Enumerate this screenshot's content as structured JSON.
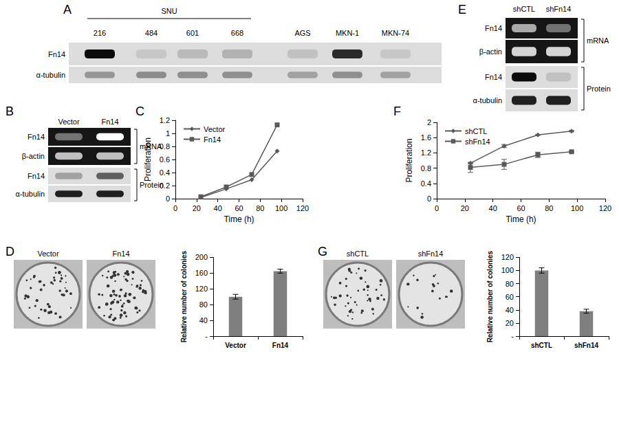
{
  "chart_data": [
    {
      "panel": "C",
      "type": "line",
      "xlabel": "Time (h)",
      "ylabel": "Proliferation",
      "x": [
        24,
        48,
        72,
        96
      ],
      "series": [
        {
          "name": "Vector",
          "color": "#595959",
          "marker": "diamond",
          "line_style": "solid",
          "values": [
            0.02,
            0.15,
            0.29,
            0.73
          ]
        },
        {
          "name": "Fn14",
          "color": "#595959",
          "marker": "square",
          "line_style": "solid",
          "values": [
            0.03,
            0.18,
            0.37,
            1.13
          ]
        }
      ],
      "xlim": [
        0,
        120
      ],
      "xticks": [
        0,
        20,
        40,
        60,
        80,
        100,
        120
      ],
      "ylim": [
        0,
        1.2
      ],
      "yticks": [
        0,
        0.2,
        0.4,
        0.6,
        0.8,
        1,
        1.2
      ],
      "grid": false,
      "legend": "top-left"
    },
    {
      "panel": "F",
      "type": "line",
      "xlabel": "Time (h)",
      "ylabel": "Proliferation",
      "x": [
        24,
        48,
        72,
        96
      ],
      "series": [
        {
          "name": "shCTL",
          "color": "#595959",
          "marker": "diamond",
          "line_style": "solid",
          "values": [
            0.93,
            1.38,
            1.67,
            1.77
          ],
          "errors": [
            0.02,
            0.04,
            0.01,
            0.02
          ]
        },
        {
          "name": "shFn14",
          "color": "#595959",
          "marker": "square",
          "line_style": "solid",
          "values": [
            0.82,
            0.9,
            1.15,
            1.23
          ],
          "errors": [
            0.13,
            0.13,
            0.07,
            0.02
          ]
        }
      ],
      "xlim": [
        0,
        120
      ],
      "xticks": [
        0,
        20,
        40,
        60,
        80,
        100,
        120
      ],
      "ylim": [
        0,
        2
      ],
      "yticks": [
        0,
        0.4,
        0.8,
        1.2,
        1.6,
        2
      ],
      "grid": false,
      "legend": "top-left"
    },
    {
      "panel": "D",
      "type": "bar",
      "ylabel": "Relative number of colonies",
      "categories": [
        "Vector",
        "Fn14"
      ],
      "values": [
        100,
        165
      ],
      "errors": [
        6,
        5
      ],
      "color": "#7f7f7f",
      "ylim": [
        0,
        200
      ],
      "yticks": [
        {
          "value": 0,
          "label": "-"
        },
        40,
        80,
        120,
        160,
        200
      ],
      "grid": false
    },
    {
      "panel": "G",
      "type": "bar",
      "ylabel": "Relative number of colonies",
      "categories": [
        "shCTL",
        "shFn14"
      ],
      "values": [
        100,
        38
      ],
      "errors": [
        4,
        3
      ],
      "color": "#7f7f7f",
      "ylim": [
        0,
        120
      ],
      "yticks": [
        {
          "value": 0,
          "label": "-"
        },
        20,
        40,
        60,
        80,
        100,
        120
      ],
      "grid": false
    }
  ],
  "figure": {
    "blots": [
      {
        "panel": "A",
        "lanes": [
          "216",
          "484",
          "601",
          "668",
          "AGS",
          "MKN-1",
          "MKN-74"
        ],
        "group": {
          "label": "SNU",
          "lanes": [
            "216",
            "484",
            "601",
            "668"
          ]
        },
        "sections": [
          {
            "rows": [
              {
                "label": "Fn14",
                "intensity": [
                  1,
                  0.12,
                  0.18,
                  0.22,
                  0.15,
                  0.85,
                  0.12
                ]
              },
              {
                "label": "α-tubulin",
                "intensity": [
                  0.35,
                  0.4,
                  0.38,
                  0.38,
                  0.3,
                  0.38,
                  0.3
                ]
              }
            ]
          }
        ]
      },
      {
        "panel": "B",
        "lanes": [
          "Vector",
          "Fn14"
        ],
        "sections": [
          {
            "label": "mRNA",
            "rows": [
              {
                "label": "Fn14",
                "intensity": [
                  0.35,
                  1
                ]
              },
              {
                "label": "β-actin",
                "intensity": [
                  0.7,
                  0.7
                ]
              }
            ]
          },
          {
            "label": "Protein",
            "rows": [
              {
                "label": "Fn14",
                "intensity": [
                  0.3,
                  0.6
                ]
              },
              {
                "label": "α-tubulin",
                "intensity": [
                  0.9,
                  0.9
                ]
              }
            ]
          }
        ]
      },
      {
        "panel": "E",
        "lanes": [
          "shCTL",
          "shFn14"
        ],
        "sections": [
          {
            "label": "mRNA",
            "rows": [
              {
                "label": "Fn14",
                "intensity": [
                  0.6,
                  0.35
                ]
              },
              {
                "label": "β-actin",
                "intensity": [
                  0.8,
                  0.8
                ]
              }
            ]
          },
          {
            "label": "Protein",
            "rows": [
              {
                "label": "Fn14",
                "intensity": [
                  1,
                  0.15
                ]
              },
              {
                "label": "α-tubulin",
                "intensity": [
                  0.9,
                  0.9
                ]
              }
            ]
          }
        ]
      }
    ]
  }
}
